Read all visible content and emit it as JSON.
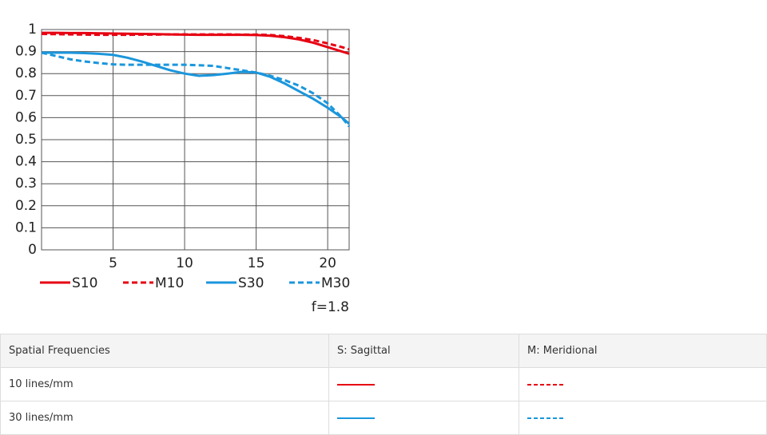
{
  "chart_data": {
    "type": "line",
    "x": [
      0,
      1,
      2,
      3,
      4,
      5,
      6,
      7,
      8,
      9,
      10,
      11,
      12,
      13,
      14,
      15,
      16,
      17,
      18,
      19,
      20,
      21,
      21.5
    ],
    "series": [
      {
        "name": "S10",
        "color": "#e60012",
        "dashed": false,
        "values": [
          0.985,
          0.985,
          0.984,
          0.984,
          0.983,
          0.982,
          0.981,
          0.98,
          0.979,
          0.978,
          0.977,
          0.976,
          0.976,
          0.976,
          0.976,
          0.975,
          0.972,
          0.965,
          0.955,
          0.94,
          0.92,
          0.9,
          0.89
        ]
      },
      {
        "name": "M10",
        "color": "#e60012",
        "dashed": true,
        "values": [
          0.98,
          0.979,
          0.978,
          0.977,
          0.976,
          0.976,
          0.976,
          0.977,
          0.977,
          0.978,
          0.978,
          0.978,
          0.978,
          0.978,
          0.977,
          0.977,
          0.975,
          0.97,
          0.962,
          0.952,
          0.937,
          0.92,
          0.91
        ]
      },
      {
        "name": "S30",
        "color": "#1b96dc",
        "dashed": false,
        "values": [
          0.895,
          0.895,
          0.895,
          0.893,
          0.89,
          0.885,
          0.872,
          0.855,
          0.835,
          0.815,
          0.8,
          0.79,
          0.793,
          0.8,
          0.808,
          0.805,
          0.785,
          0.755,
          0.72,
          0.685,
          0.645,
          0.6,
          0.572
        ]
      },
      {
        "name": "M30",
        "color": "#1b96dc",
        "dashed": true,
        "values": [
          0.895,
          0.88,
          0.865,
          0.855,
          0.848,
          0.842,
          0.84,
          0.84,
          0.84,
          0.84,
          0.84,
          0.838,
          0.835,
          0.825,
          0.815,
          0.805,
          0.79,
          0.77,
          0.745,
          0.71,
          0.665,
          0.6,
          0.56
        ]
      }
    ],
    "xlim": [
      0,
      21.5
    ],
    "xticks": [
      5,
      10,
      15,
      20
    ],
    "ylim": [
      0,
      1
    ],
    "yticks": [
      0,
      0.1,
      0.2,
      0.3,
      0.4,
      0.5,
      0.6,
      0.7,
      0.8,
      0.9,
      1
    ],
    "grid": true,
    "annotation": "f=1.8"
  },
  "table": {
    "header": [
      "Spatial Frequencies",
      "S: Sagittal",
      "M: Meridional"
    ],
    "rows": [
      "10 lines/mm",
      "30 lines/mm"
    ]
  }
}
